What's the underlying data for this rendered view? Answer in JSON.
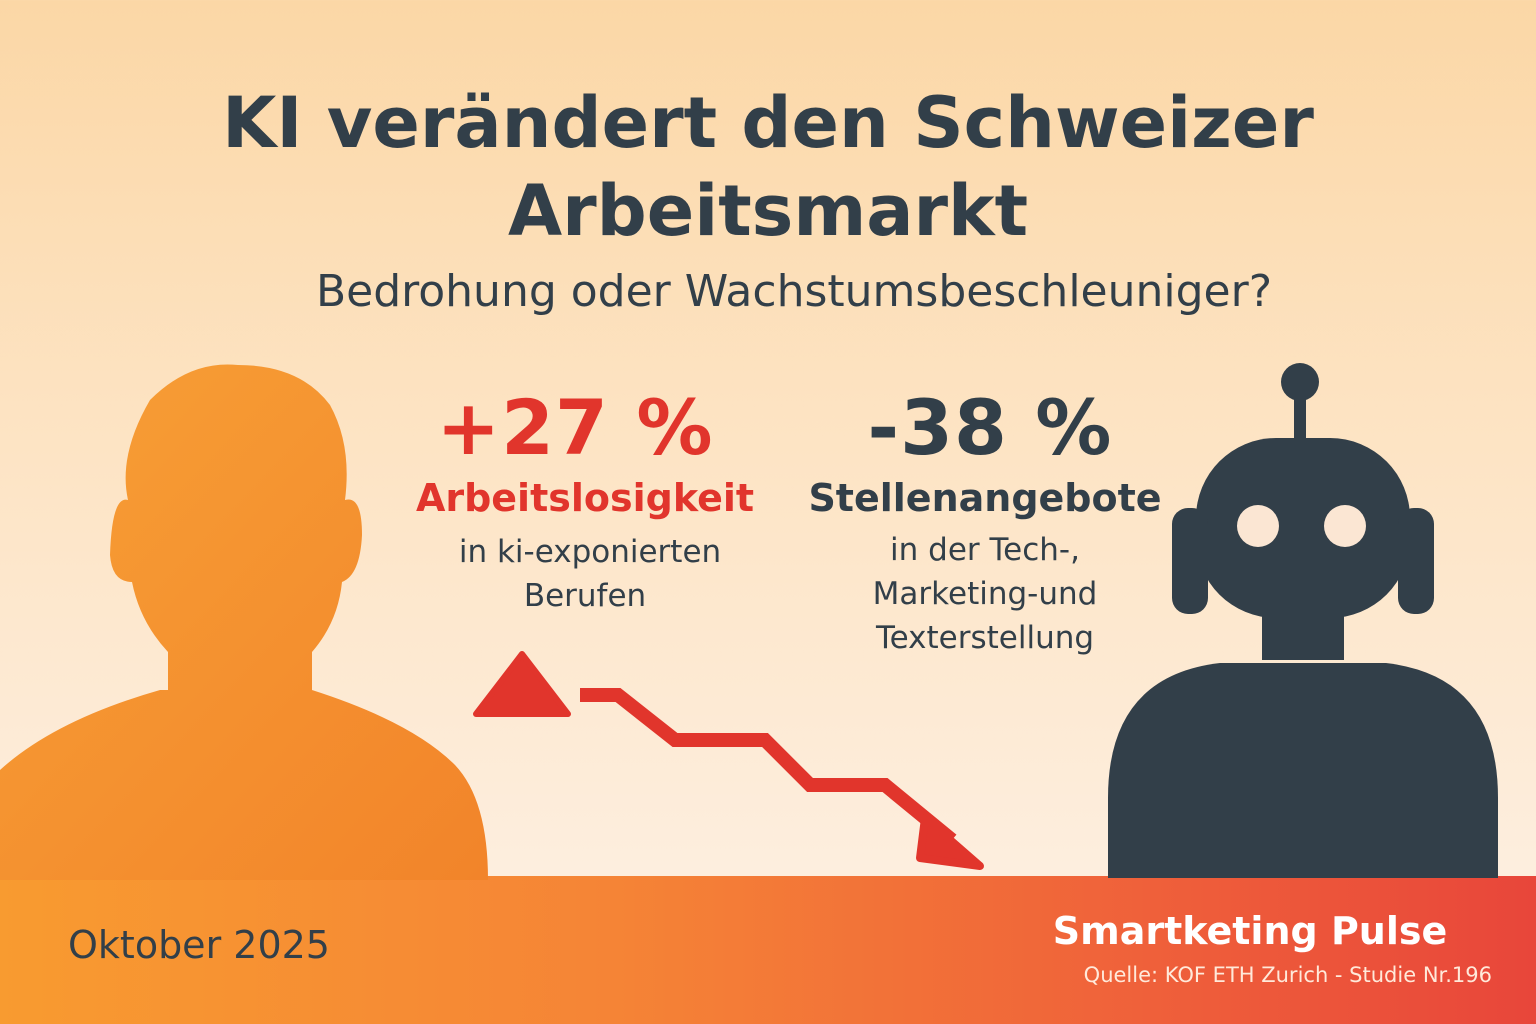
{
  "header": {
    "title_line1": "KI verändert den Schweizer",
    "title_line2": "Arbeitsmarkt",
    "subtitle": "Bedrohung oder Wachstumsbeschleuniger?"
  },
  "stats": [
    {
      "value": "+27 %",
      "label": "Arbeitslosigkeit",
      "desc_line1": "in ki-exponierten",
      "desc_line2": "Berufen",
      "color": "#e1352c"
    },
    {
      "value": "-38 %",
      "label": "Stellenangebote",
      "desc_line1": "in der Tech-,",
      "desc_line2": "Marketing-und",
      "desc_line3": "Texterstellung",
      "color": "#323f49"
    }
  ],
  "footer": {
    "date": "Oktober 2025",
    "brand": "Smartketing Pulse",
    "source": "Quelle: KOF ETH Zurich - Studie Nr.196"
  },
  "icons": [
    "person-silhouette-icon",
    "robot-silhouette-icon",
    "up-triangle-icon",
    "down-trend-arrow-icon"
  ],
  "colors": {
    "accent_red": "#e1352c",
    "dark": "#323f49",
    "orange": "#f58a2e"
  }
}
